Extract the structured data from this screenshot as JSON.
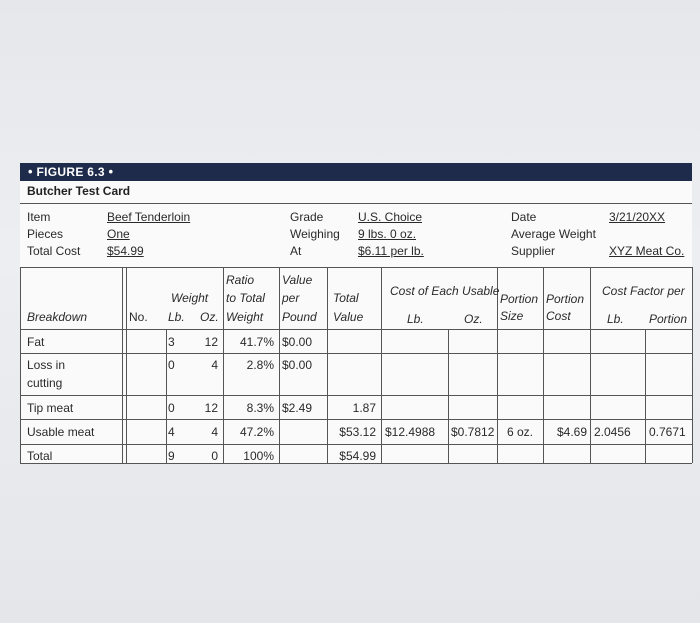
{
  "figure_label": "FIGURE 6.3",
  "card_title": "Butcher Test Card",
  "header": {
    "item_label": "Item",
    "item_value": "Beef Tenderloin",
    "pieces_label": "Pieces",
    "pieces_value": "One",
    "total_cost_label": "Total Cost",
    "total_cost_value": "$54.99",
    "grade_label": "Grade",
    "grade_value": "U.S. Choice",
    "weighing_label": "Weighing",
    "weighing_value": "9 lbs. 0 oz.",
    "at_label": "At",
    "at_value": "$6.11 per lb.",
    "date_label": "Date",
    "date_value": "3/21/20XX",
    "avg_weight_label": "Average Weight",
    "supplier_label": "Supplier",
    "supplier_value": "XYZ Meat Co."
  },
  "columns": {
    "breakdown": "Breakdown",
    "no": "No.",
    "weight": "Weight",
    "lb": "Lb.",
    "oz": "Oz.",
    "ratio_1": "Ratio",
    "ratio_2": "to Total",
    "ratio_3": "Weight",
    "value_1": "Value",
    "value_2": "per",
    "value_3": "Pound",
    "total_1": "Total",
    "total_2": "Value",
    "cost_each": "Cost of Each Usable",
    "cost_lb": "Lb.",
    "cost_oz": "Oz.",
    "portion_size_1": "Portion",
    "portion_size_2": "Size",
    "portion_cost_1": "Portion",
    "portion_cost_2": "Cost",
    "cost_factor": "Cost Factor per",
    "cf_lb": "Lb.",
    "cf_portion": "Portion"
  },
  "rows": [
    {
      "breakdown": "Fat",
      "lb": "3",
      "oz": "12",
      "ratio": "41.7%",
      "vpp": "$0.00",
      "total": "",
      "cost_lb": "",
      "cost_oz": "",
      "psize": "",
      "pcost": "",
      "cf_lb": "",
      "cf_portion": ""
    },
    {
      "breakdown": "Loss in",
      "breakdown2": "cutting",
      "lb": "0",
      "oz": "4",
      "ratio": "2.8%",
      "vpp": "$0.00",
      "total": "",
      "cost_lb": "",
      "cost_oz": "",
      "psize": "",
      "pcost": "",
      "cf_lb": "",
      "cf_portion": ""
    },
    {
      "breakdown": "Tip meat",
      "lb": "0",
      "oz": "12",
      "ratio": "8.3%",
      "vpp": "$2.49",
      "total": "1.87",
      "cost_lb": "",
      "cost_oz": "",
      "psize": "",
      "pcost": "",
      "cf_lb": "",
      "cf_portion": ""
    },
    {
      "breakdown": "Usable meat",
      "lb": "4",
      "oz": "4",
      "ratio": "47.2%",
      "vpp": "",
      "total": "$53.12",
      "cost_lb": "$12.4988",
      "cost_oz": "$0.7812",
      "psize": "6 oz.",
      "pcost": "$4.69",
      "cf_lb": "2.0456",
      "cf_portion": "0.7671"
    },
    {
      "breakdown": "Total",
      "lb": "9",
      "oz": "0",
      "ratio": "100%",
      "vpp": "",
      "total": "$54.99",
      "cost_lb": "",
      "cost_oz": "",
      "psize": "",
      "pcost": "",
      "cf_lb": "",
      "cf_portion": ""
    }
  ]
}
